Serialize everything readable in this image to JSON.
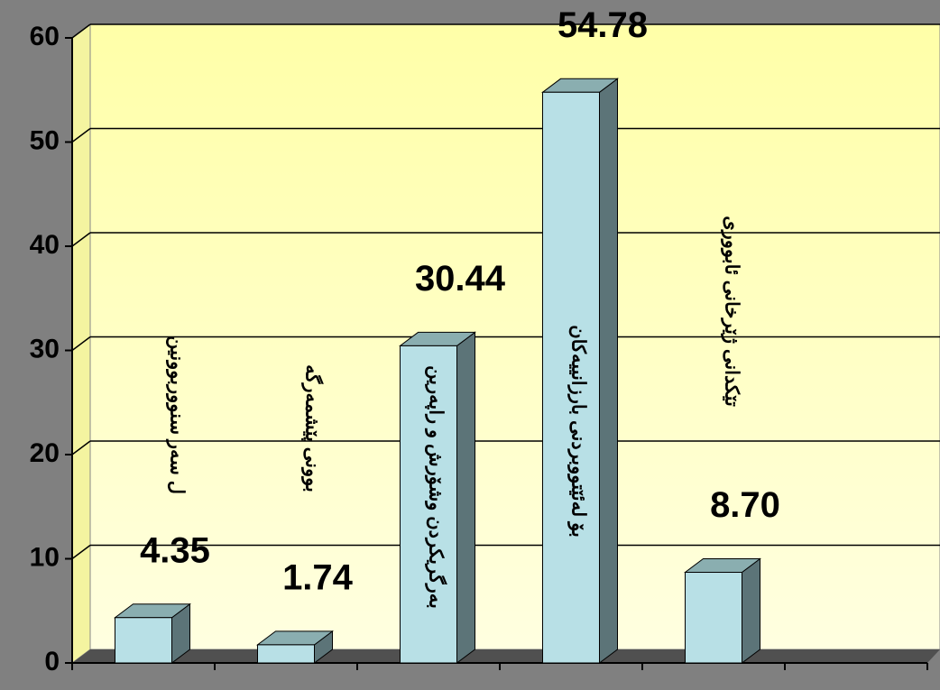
{
  "chart_data": {
    "type": "bar3d",
    "categories": [
      "ل سەر سنووربوونین",
      "بوونی پێشمەرگە",
      "بەرگریکردن وشۆرش و راپەرین",
      "بۆ لەئێتووبردنی بارزانییەکان",
      "تێکدانی ژێرخانی ئابووری",
      null
    ],
    "values": [
      4.35,
      1.74,
      30.44,
      54.78,
      8.7,
      null
    ],
    "value_labels": [
      "4.35",
      "1.74",
      "30.44",
      "54.78",
      "8.70",
      null
    ],
    "color": "#b8e0e6",
    "ylim": [
      0,
      60
    ],
    "yticks": [
      0,
      10,
      20,
      30,
      40,
      50,
      60
    ],
    "grid": true
  }
}
